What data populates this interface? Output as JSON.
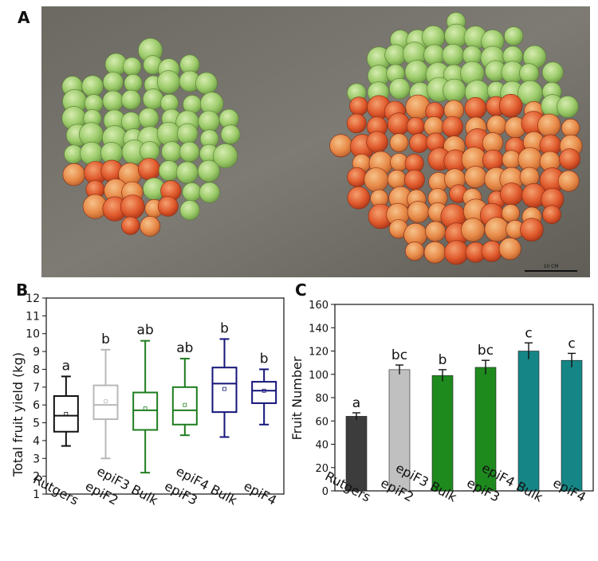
{
  "panels": {
    "a": "A",
    "b": "B",
    "c": "C"
  },
  "photo": {
    "scale_bar_label": "10 CM"
  },
  "chart_data": [
    {
      "panel": "B",
      "type": "box",
      "ylabel": "Total fruit yield (kg)",
      "ylim": [
        1,
        12
      ],
      "yticks": [
        1,
        2,
        3,
        4,
        5,
        6,
        7,
        8,
        9,
        10,
        11,
        12
      ],
      "categories": [
        "Rutgers",
        "epiF2",
        "epiF3 Bulk",
        "epiF3",
        "epiF4 Bulk",
        "epiF4"
      ],
      "colors": [
        "#111111",
        "#b8b8b8",
        "#1e7d1e",
        "#1e7d1e",
        "#14147a",
        "#14147a"
      ],
      "boxes": [
        {
          "min": 3.7,
          "q1": 4.5,
          "median": 5.4,
          "q3": 6.5,
          "max": 7.6,
          "mean": 5.5
        },
        {
          "min": 3.0,
          "q1": 5.2,
          "median": 6.0,
          "q3": 7.1,
          "max": 9.1,
          "mean": 6.2
        },
        {
          "min": 2.2,
          "q1": 4.6,
          "median": 5.7,
          "q3": 6.7,
          "max": 9.6,
          "mean": 5.8
        },
        {
          "min": 4.3,
          "q1": 4.9,
          "median": 5.7,
          "q3": 7.0,
          "max": 8.6,
          "mean": 6.0
        },
        {
          "min": 4.2,
          "q1": 5.6,
          "median": 7.2,
          "q3": 8.1,
          "max": 9.7,
          "mean": 6.9
        },
        {
          "min": 4.9,
          "q1": 6.1,
          "median": 6.8,
          "q3": 7.3,
          "max": 8.0,
          "mean": 6.8
        }
      ],
      "significance": [
        "a",
        "b",
        "ab",
        "ab",
        "b",
        "b"
      ]
    },
    {
      "panel": "C",
      "type": "bar",
      "ylabel": "Fruit Number",
      "ylim": [
        0,
        160
      ],
      "yticks": [
        0,
        20,
        40,
        60,
        80,
        100,
        120,
        140,
        160
      ],
      "categories": [
        "Rutgers",
        "epiF2",
        "epiF3 Bulk",
        "epiF3",
        "epiF4 Bulk",
        "epiF4"
      ],
      "colors": [
        "#3c3c3c",
        "#c0c0c0",
        "#1e8a1e",
        "#1e8a1e",
        "#168585",
        "#168585"
      ],
      "values": [
        64,
        104,
        99,
        106,
        120,
        112
      ],
      "errors": [
        3,
        4,
        5,
        6,
        7,
        6
      ],
      "significance": [
        "a",
        "bc",
        "b",
        "bc",
        "c",
        "c"
      ]
    }
  ]
}
